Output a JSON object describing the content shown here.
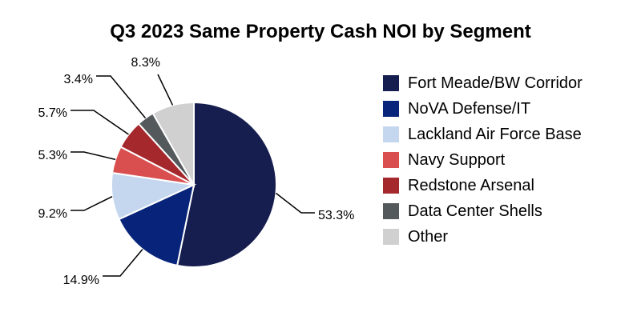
{
  "chart_data": {
    "type": "pie",
    "title": "Q3 2023 Same Property Cash NOI by Segment",
    "legend_placement": "right",
    "start_angle": "12 o'clock, clockwise",
    "slices": [
      {
        "name": "Fort Meade/BW Corridor",
        "value": 53.3,
        "label": "53.3%",
        "color": "#161d4f"
      },
      {
        "name": "NoVA Defense/IT",
        "value": 14.9,
        "label": "14.9%",
        "color": "#07247a"
      },
      {
        "name": "Lackland Air Force Base",
        "value": 9.2,
        "label": "9.2%",
        "color": "#c5d7ee"
      },
      {
        "name": "Navy Support",
        "value": 5.3,
        "label": "5.3%",
        "color": "#d94f50"
      },
      {
        "name": "Redstone Arsenal",
        "value": 5.7,
        "label": "5.7%",
        "color": "#a5282c"
      },
      {
        "name": "Data Center Shells",
        "value": 3.4,
        "label": "3.4%",
        "color": "#545a5c"
      },
      {
        "name": "Other",
        "value": 8.3,
        "label": "8.3%",
        "color": "#d0d0d0"
      }
    ]
  }
}
